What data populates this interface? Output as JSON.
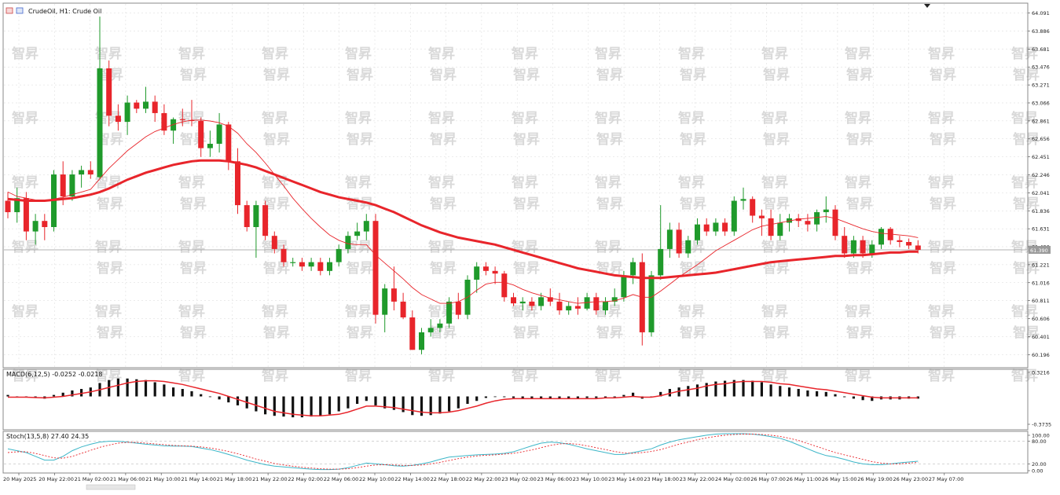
{
  "header": {
    "symbol_title": "CrudeOil, H1:  Crude Oil",
    "current_price_label": "61.390"
  },
  "watermark": {
    "text": "智昇",
    "color": "#d9d9d9"
  },
  "colors": {
    "bull": "#1f9a2b",
    "bear": "#e8252b",
    "ma_fast": "#e8252b",
    "ma_slow": "#e8252b",
    "macd_hist": "#111111",
    "macd_signal": "#e8252b",
    "stoch_main": "#3cb6c8",
    "stoch_signal": "#e8252b",
    "grid": "#d8d8d8",
    "price_line": "#9a9a9a"
  },
  "chart_data": [
    {
      "type": "candlestick",
      "title": "CrudeOil, H1:  Crude Oil",
      "ylim": [
        60.1,
        64.15
      ],
      "y_ticks": [
        "64.091",
        "63.886",
        "63.681",
        "63.476",
        "63.271",
        "63.066",
        "62.861",
        "62.656",
        "62.451",
        "62.246",
        "62.041",
        "61.836",
        "61.631",
        "61.426",
        "61.221",
        "61.016",
        "60.811",
        "60.606",
        "60.401",
        "60.196"
      ],
      "x_labels": [
        "20 May 2025",
        "20 May 22:00",
        "21 May 02:00",
        "21 May 06:00",
        "21 May 10:00",
        "21 May 14:00",
        "21 May 18:00",
        "21 May 22:00",
        "22 May 02:00",
        "22 May 06:00",
        "22 May 10:00",
        "22 May 14:00",
        "22 May 18:00",
        "22 May 22:00",
        "23 May 02:00",
        "23 May 06:00",
        "23 May 10:00",
        "23 May 14:00",
        "23 May 18:00",
        "23 May 22:00",
        "24 May 02:00",
        "26 May 07:00",
        "26 May 11:00",
        "26 May 15:00",
        "26 May 19:00",
        "26 May 23:00",
        "27 May 07:00"
      ],
      "current_price": 61.39,
      "ohlc": [
        [
          61.95,
          62.05,
          61.75,
          61.82
        ],
        [
          61.82,
          62.1,
          61.7,
          61.98
        ],
        [
          61.98,
          62.05,
          61.5,
          61.6
        ],
        [
          61.6,
          61.8,
          61.45,
          61.72
        ],
        [
          61.72,
          61.8,
          61.5,
          61.65
        ],
        [
          61.65,
          62.3,
          61.6,
          62.25
        ],
        [
          62.25,
          62.4,
          61.9,
          62.0
        ],
        [
          62.0,
          62.3,
          61.95,
          62.25
        ],
        [
          62.25,
          62.35,
          62.1,
          62.3
        ],
        [
          62.3,
          62.4,
          62.2,
          62.25
        ],
        [
          62.22,
          64.05,
          62.2,
          63.46
        ],
        [
          63.46,
          63.55,
          62.8,
          62.92
        ],
        [
          62.92,
          63.05,
          62.75,
          62.85
        ],
        [
          62.85,
          63.15,
          62.7,
          63.07
        ],
        [
          63.07,
          63.1,
          62.95,
          63.0
        ],
        [
          63.0,
          63.25,
          62.95,
          63.08
        ],
        [
          63.08,
          63.15,
          62.85,
          62.95
        ],
        [
          62.95,
          63.05,
          62.7,
          62.75
        ],
        [
          62.75,
          62.9,
          62.6,
          62.88
        ],
        [
          62.88,
          63.0,
          62.8,
          62.87
        ],
        [
          62.87,
          63.1,
          62.8,
          62.86
        ],
        [
          62.86,
          62.9,
          62.45,
          62.55
        ],
        [
          62.55,
          62.75,
          62.45,
          62.6
        ],
        [
          62.6,
          62.95,
          62.5,
          62.82
        ],
        [
          62.82,
          62.85,
          62.3,
          62.4
        ],
        [
          62.4,
          62.55,
          61.8,
          61.9
        ],
        [
          61.9,
          61.95,
          61.6,
          61.65
        ],
        [
          61.65,
          61.95,
          61.3,
          61.9
        ],
        [
          61.9,
          61.95,
          61.5,
          61.55
        ],
        [
          61.55,
          61.6,
          61.35,
          61.4
        ],
        [
          61.4,
          61.45,
          61.2,
          61.25
        ],
        [
          61.25,
          61.3,
          61.2,
          61.25
        ],
        [
          61.25,
          61.3,
          61.15,
          61.2
        ],
        [
          61.2,
          61.3,
          61.15,
          61.25
        ],
        [
          61.25,
          61.3,
          61.1,
          61.15
        ],
        [
          61.15,
          61.3,
          61.1,
          61.25
        ],
        [
          61.25,
          61.45,
          61.2,
          61.4
        ],
        [
          61.4,
          61.6,
          61.35,
          61.55
        ],
        [
          61.55,
          61.7,
          61.5,
          61.6
        ],
        [
          61.6,
          61.8,
          61.5,
          61.72
        ],
        [
          61.72,
          61.8,
          60.55,
          60.65
        ],
        [
          60.65,
          61.0,
          60.45,
          60.95
        ],
        [
          60.95,
          61.2,
          60.7,
          60.8
        ],
        [
          60.8,
          60.9,
          60.6,
          60.62
        ],
        [
          60.62,
          60.7,
          60.25,
          60.25
        ],
        [
          60.25,
          60.5,
          60.2,
          60.45
        ],
        [
          60.45,
          60.6,
          60.4,
          60.5
        ],
        [
          60.5,
          60.6,
          60.45,
          60.55
        ],
        [
          60.55,
          60.85,
          60.5,
          60.8
        ],
        [
          60.8,
          60.9,
          60.6,
          60.65
        ],
        [
          60.65,
          61.1,
          60.6,
          61.05
        ],
        [
          61.05,
          61.25,
          60.9,
          61.2
        ],
        [
          61.2,
          61.25,
          61.1,
          61.15
        ],
        [
          61.15,
          61.2,
          61.0,
          61.12
        ],
        [
          61.12,
          61.15,
          60.8,
          60.85
        ],
        [
          60.85,
          60.9,
          60.75,
          60.78
        ],
        [
          60.78,
          60.85,
          60.7,
          60.8
        ],
        [
          60.8,
          60.85,
          60.7,
          60.75
        ],
        [
          60.75,
          60.9,
          60.7,
          60.85
        ],
        [
          60.85,
          60.95,
          60.75,
          60.8
        ],
        [
          60.8,
          60.9,
          60.65,
          60.7
        ],
        [
          60.7,
          60.8,
          60.65,
          60.75
        ],
        [
          60.75,
          60.85,
          60.65,
          60.72
        ],
        [
          60.72,
          60.9,
          60.7,
          60.85
        ],
        [
          60.85,
          60.9,
          60.65,
          60.7
        ],
        [
          60.7,
          60.85,
          60.65,
          60.8
        ],
        [
          60.8,
          60.95,
          60.75,
          60.85
        ],
        [
          60.85,
          61.15,
          60.8,
          61.1
        ],
        [
          61.1,
          61.3,
          61.0,
          61.25
        ],
        [
          61.25,
          61.35,
          60.3,
          60.45
        ],
        [
          60.45,
          61.15,
          60.4,
          61.1
        ],
        [
          61.1,
          61.9,
          61.05,
          61.4
        ],
        [
          61.4,
          61.7,
          61.3,
          61.62
        ],
        [
          61.62,
          61.7,
          61.3,
          61.35
        ],
        [
          61.35,
          61.55,
          61.3,
          61.5
        ],
        [
          61.5,
          61.75,
          61.45,
          61.68
        ],
        [
          61.68,
          61.75,
          61.55,
          61.6
        ],
        [
          61.6,
          61.75,
          61.55,
          61.7
        ],
        [
          61.7,
          61.75,
          61.55,
          61.6
        ],
        [
          61.6,
          62.0,
          61.55,
          61.95
        ],
        [
          61.95,
          62.1,
          61.85,
          61.97
        ],
        [
          61.97,
          62.0,
          61.7,
          61.78
        ],
        [
          61.78,
          61.85,
          61.55,
          61.75
        ],
        [
          61.75,
          61.85,
          61.5,
          61.55
        ],
        [
          61.55,
          61.8,
          61.5,
          61.7
        ],
        [
          61.7,
          61.8,
          61.6,
          61.75
        ],
        [
          61.75,
          61.8,
          61.65,
          61.72
        ],
        [
          61.72,
          61.8,
          61.6,
          61.68
        ],
        [
          61.68,
          61.85,
          61.6,
          61.82
        ],
        [
          61.82,
          62.0,
          61.7,
          61.85
        ],
        [
          61.85,
          61.9,
          61.5,
          61.55
        ],
        [
          61.55,
          61.65,
          61.3,
          61.35
        ],
        [
          61.35,
          61.55,
          61.3,
          61.5
        ],
        [
          61.5,
          61.55,
          61.3,
          61.35
        ],
        [
          61.35,
          61.5,
          61.3,
          61.45
        ],
        [
          61.45,
          61.65,
          61.4,
          61.63
        ],
        [
          61.63,
          61.65,
          61.45,
          61.5
        ],
        [
          61.5,
          61.55,
          61.42,
          61.48
        ],
        [
          61.48,
          61.52,
          61.4,
          61.44
        ],
        [
          61.44,
          61.5,
          61.35,
          61.39
        ]
      ],
      "ma_fast": [
        62.05,
        62.0,
        61.98,
        61.96,
        61.95,
        61.97,
        61.99,
        62.02,
        62.05,
        62.08,
        62.2,
        62.32,
        62.42,
        62.52,
        62.6,
        62.68,
        62.74,
        62.78,
        62.82,
        62.85,
        62.87,
        62.87,
        62.86,
        62.84,
        62.8,
        62.72,
        62.6,
        62.5,
        62.38,
        62.25,
        62.12,
        61.98,
        61.86,
        61.75,
        61.65,
        61.56,
        61.5,
        61.46,
        61.45,
        61.45,
        61.33,
        61.24,
        61.15,
        61.06,
        60.96,
        60.88,
        60.83,
        60.78,
        60.78,
        60.8,
        60.85,
        60.93,
        61.0,
        61.02,
        61.02,
        60.99,
        60.94,
        60.9,
        60.87,
        60.84,
        60.82,
        60.8,
        60.78,
        60.79,
        60.8,
        60.8,
        60.81,
        60.84,
        60.88,
        60.85,
        60.85,
        60.92,
        61.0,
        61.08,
        61.15,
        61.22,
        61.3,
        61.38,
        61.44,
        61.5,
        61.56,
        61.62,
        61.66,
        61.68,
        61.7,
        61.72,
        61.74,
        61.75,
        61.76,
        61.77,
        61.75,
        61.71,
        61.67,
        61.63,
        61.6,
        61.58,
        61.57,
        61.56,
        61.55,
        61.53
      ],
      "ma_slow": [
        61.97,
        61.96,
        61.95,
        61.95,
        61.95,
        61.96,
        61.97,
        61.98,
        62.0,
        62.02,
        62.05,
        62.09,
        62.14,
        62.19,
        62.23,
        62.27,
        62.3,
        62.33,
        62.36,
        62.38,
        62.4,
        62.41,
        62.41,
        62.41,
        62.4,
        62.38,
        62.36,
        62.33,
        62.29,
        62.25,
        62.21,
        62.17,
        62.13,
        62.09,
        62.05,
        62.02,
        61.99,
        61.97,
        61.95,
        61.93,
        61.9,
        61.86,
        61.82,
        61.77,
        61.72,
        61.67,
        61.63,
        61.59,
        61.56,
        61.53,
        61.51,
        61.49,
        61.47,
        61.45,
        61.42,
        61.39,
        61.36,
        61.33,
        61.3,
        61.27,
        61.24,
        61.21,
        61.18,
        61.16,
        61.14,
        61.12,
        61.1,
        61.09,
        61.08,
        61.07,
        61.07,
        61.07,
        61.08,
        61.09,
        61.1,
        61.11,
        61.12,
        61.13,
        61.15,
        61.17,
        61.19,
        61.21,
        61.23,
        61.25,
        61.26,
        61.27,
        61.28,
        61.29,
        61.3,
        61.31,
        61.32,
        61.32,
        61.33,
        61.33,
        61.34,
        61.35,
        61.36,
        61.36,
        61.37,
        61.37
      ]
    },
    {
      "type": "bar",
      "title": "MACD(6,12,5) -0.0252 -0.0218",
      "ylim": [
        -0.3735,
        0.3216
      ],
      "y_ticks": [
        "0.3216",
        "-0.3735"
      ],
      "histogram": [
        0.02,
        0.0,
        -0.01,
        -0.02,
        -0.03,
        0.02,
        0.05,
        0.08,
        0.1,
        0.12,
        0.18,
        0.22,
        0.24,
        0.24,
        0.23,
        0.22,
        0.19,
        0.16,
        0.12,
        0.1,
        0.07,
        0.03,
        0.0,
        -0.04,
        -0.08,
        -0.12,
        -0.16,
        -0.2,
        -0.24,
        -0.26,
        -0.27,
        -0.28,
        -0.28,
        -0.27,
        -0.26,
        -0.24,
        -0.2,
        -0.16,
        -0.1,
        -0.06,
        -0.12,
        -0.16,
        -0.18,
        -0.21,
        -0.25,
        -0.26,
        -0.25,
        -0.23,
        -0.2,
        -0.16,
        -0.1,
        -0.06,
        -0.02,
        0.0,
        -0.01,
        -0.02,
        -0.03,
        -0.03,
        -0.03,
        -0.03,
        -0.03,
        -0.03,
        -0.03,
        -0.02,
        -0.02,
        -0.02,
        -0.01,
        0.02,
        0.05,
        -0.03,
        0.0,
        0.06,
        0.1,
        0.12,
        0.14,
        0.16,
        0.18,
        0.2,
        0.21,
        0.22,
        0.22,
        0.21,
        0.19,
        0.16,
        0.14,
        0.12,
        0.1,
        0.08,
        0.07,
        0.06,
        0.03,
        -0.01,
        -0.03,
        -0.05,
        -0.06,
        -0.04,
        -0.04,
        -0.04,
        -0.03,
        -0.03
      ],
      "signal": [
        -0.01,
        -0.01,
        -0.01,
        -0.015,
        -0.02,
        -0.01,
        0.0,
        0.02,
        0.04,
        0.06,
        0.09,
        0.12,
        0.15,
        0.18,
        0.2,
        0.21,
        0.21,
        0.2,
        0.18,
        0.16,
        0.13,
        0.1,
        0.07,
        0.04,
        0.0,
        -0.04,
        -0.08,
        -0.12,
        -0.16,
        -0.2,
        -0.22,
        -0.24,
        -0.25,
        -0.26,
        -0.26,
        -0.25,
        -0.24,
        -0.21,
        -0.17,
        -0.13,
        -0.13,
        -0.14,
        -0.15,
        -0.17,
        -0.19,
        -0.21,
        -0.22,
        -0.22,
        -0.21,
        -0.19,
        -0.16,
        -0.13,
        -0.09,
        -0.06,
        -0.04,
        -0.03,
        -0.03,
        -0.03,
        -0.03,
        -0.03,
        -0.03,
        -0.03,
        -0.03,
        -0.03,
        -0.03,
        -0.02,
        -0.02,
        -0.01,
        0.0,
        -0.01,
        -0.01,
        0.01,
        0.04,
        0.07,
        0.09,
        0.11,
        0.14,
        0.16,
        0.17,
        0.19,
        0.2,
        0.2,
        0.2,
        0.19,
        0.17,
        0.16,
        0.14,
        0.12,
        0.1,
        0.09,
        0.07,
        0.05,
        0.03,
        0.01,
        -0.01,
        -0.02,
        -0.02,
        -0.02,
        -0.02,
        -0.02
      ]
    },
    {
      "type": "line",
      "title": "Stoch(13,5,8) 27.40 24.35",
      "ylim": [
        0,
        100
      ],
      "y_ticks": [
        "100.00",
        "80.00",
        "20.00",
        "0.00"
      ],
      "main": [
        60,
        55,
        50,
        40,
        30,
        30,
        40,
        55,
        65,
        72,
        78,
        80,
        80,
        78,
        75,
        72,
        70,
        68,
        67,
        67,
        66,
        62,
        58,
        52,
        45,
        38,
        30,
        24,
        18,
        14,
        12,
        10,
        8,
        6,
        5,
        5,
        6,
        10,
        16,
        22,
        20,
        18,
        15,
        14,
        16,
        20,
        25,
        32,
        38,
        40,
        42,
        44,
        45,
        46,
        48,
        52,
        60,
        68,
        75,
        78,
        76,
        72,
        66,
        60,
        55,
        50,
        45,
        45,
        50,
        55,
        60,
        70,
        78,
        84,
        88,
        92,
        96,
        99,
        100,
        100,
        100,
        99,
        96,
        92,
        88,
        80,
        70,
        60,
        50,
        42,
        38,
        32,
        25,
        20,
        18,
        18,
        20,
        23,
        25,
        27
      ],
      "signal": [
        50,
        52,
        52,
        48,
        42,
        36,
        35,
        40,
        48,
        56,
        64,
        70,
        75,
        77,
        77,
        75,
        73,
        71,
        69,
        68,
        67,
        65,
        62,
        58,
        53,
        47,
        40,
        33,
        27,
        21,
        17,
        14,
        11,
        9,
        7,
        6,
        6,
        7,
        10,
        14,
        17,
        18,
        17,
        16,
        16,
        17,
        20,
        24,
        29,
        34,
        38,
        41,
        43,
        44,
        46,
        48,
        52,
        57,
        63,
        69,
        73,
        74,
        72,
        68,
        63,
        58,
        53,
        49,
        48,
        50,
        53,
        58,
        65,
        72,
        78,
        84,
        89,
        93,
        96,
        98,
        99,
        99,
        98,
        96,
        93,
        88,
        82,
        74,
        66,
        58,
        50,
        44,
        38,
        32,
        26,
        22,
        20,
        20,
        22,
        24
      ]
    }
  ]
}
